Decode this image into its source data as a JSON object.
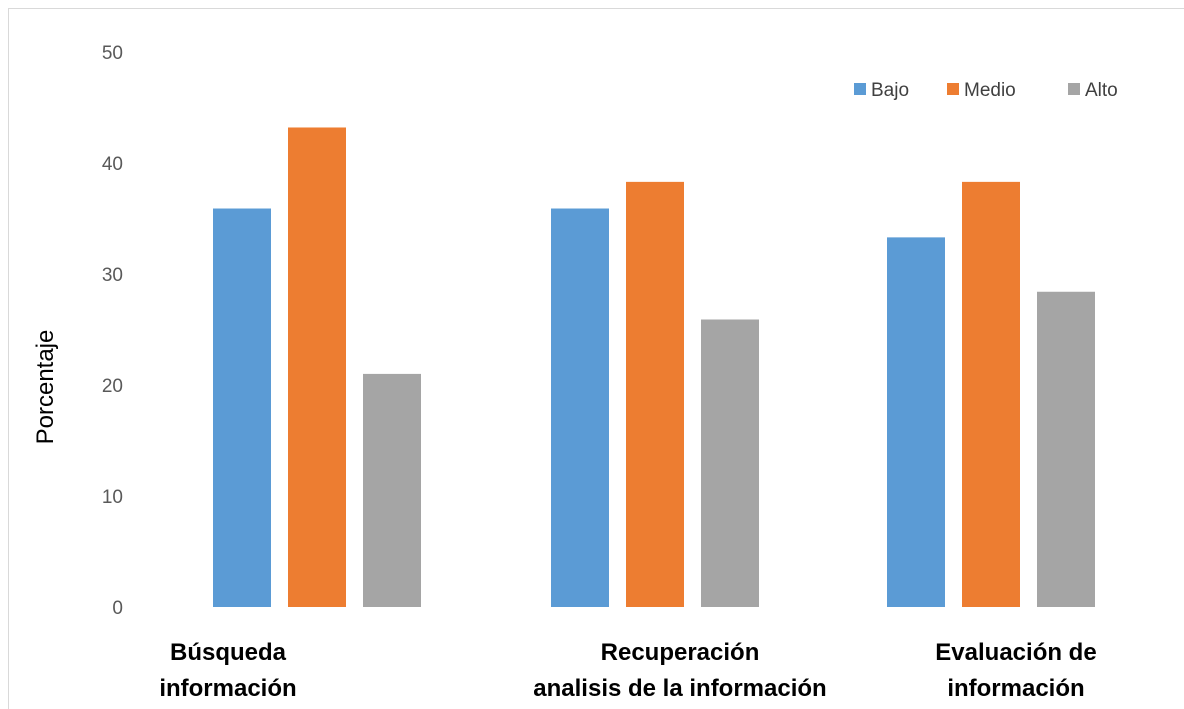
{
  "chart_data": {
    "type": "bar",
    "title": "",
    "xlabel": "",
    "ylabel": "Porcentaje",
    "ylim": [
      0,
      50
    ],
    "yticks": [
      "0",
      "10",
      "20",
      "30",
      "40",
      "50"
    ],
    "grid": false,
    "legend_position": "top-right",
    "categories": [
      [
        "Búsqueda",
        "información"
      ],
      [
        "Recuperación",
        "analisis de la información"
      ],
      [
        "Evaluación de",
        "información"
      ]
    ],
    "series": [
      {
        "name": "Bajo",
        "color": "#5b9bd5",
        "values": [
          35.9,
          35.9,
          33.3
        ]
      },
      {
        "name": "Medio",
        "color": "#ed7d31",
        "values": [
          43.2,
          38.3,
          38.3
        ]
      },
      {
        "name": "Alto",
        "color": "#a5a5a5",
        "values": [
          21.0,
          25.9,
          28.4
        ]
      }
    ]
  }
}
